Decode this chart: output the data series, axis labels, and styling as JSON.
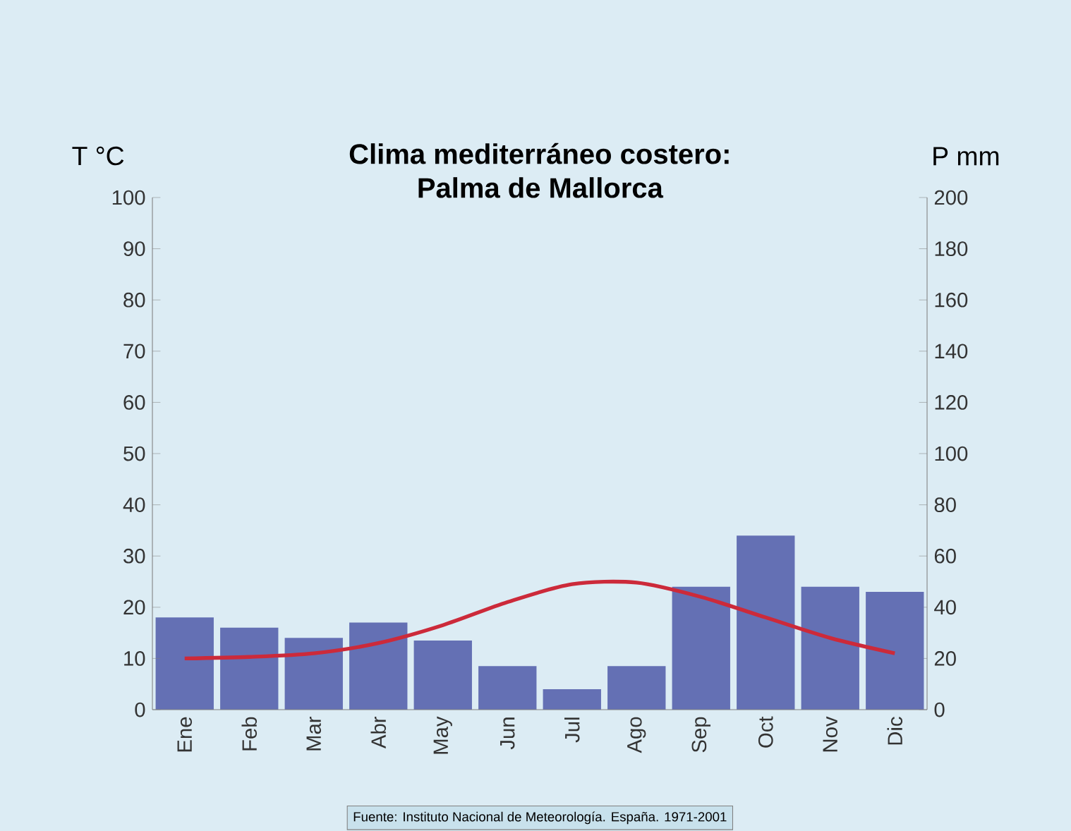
{
  "chart_data": {
    "type": "bar",
    "title": "Clima mediterráneo costero:",
    "subtitle": "Palma de Mallorca",
    "ylabel": "T °C",
    "y2label": "P mm",
    "categories": [
      "Ene",
      "Feb",
      "Mar",
      "Abr",
      "May",
      "Jun",
      "Jul",
      "Ago",
      "Sep",
      "Oct",
      "Nov",
      "Dic"
    ],
    "series": [
      {
        "axis": "y2",
        "color": "#6470b4",
        "values": [
          36,
          32,
          28,
          34,
          27,
          17,
          8,
          17,
          48,
          68,
          48,
          46
        ]
      },
      {
        "type": "line",
        "axis": "y",
        "color": "#cc2a3a",
        "values": [
          10,
          10.3,
          11,
          13,
          16.5,
          21,
          24.5,
          24.8,
          22,
          18,
          14,
          11
        ]
      }
    ],
    "ylim": [
      0,
      100
    ],
    "yticks": [
      0,
      10,
      20,
      30,
      40,
      50,
      60,
      70,
      80,
      90,
      100
    ],
    "y2lim": [
      0,
      200
    ],
    "y2ticks": [
      0,
      20,
      40,
      60,
      80,
      100,
      120,
      140,
      160,
      180,
      200
    ],
    "grid": false,
    "annotations": [
      "Fuente: Instituto Nacional de Meteorología. España. 1971-2001"
    ]
  }
}
